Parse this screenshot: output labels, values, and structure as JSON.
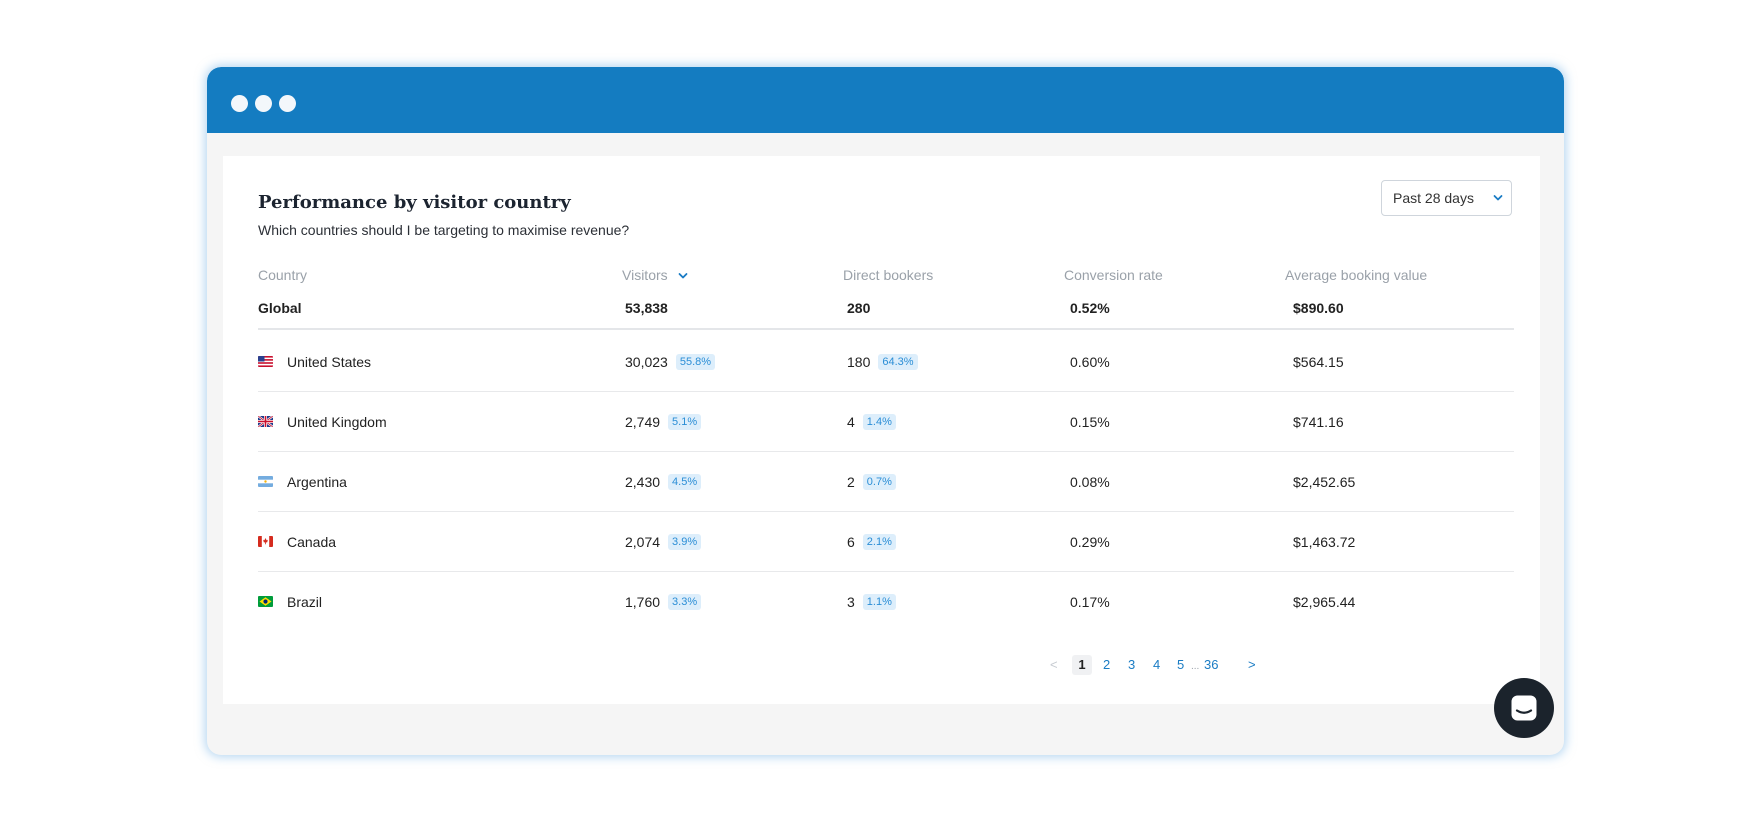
{
  "panel": {
    "title": "Performance by visitor country",
    "subtitle": "Which countries should I be targeting to maximise revenue?",
    "date_range": {
      "selected": "Past 28 days"
    }
  },
  "table": {
    "columns": {
      "country": "Country",
      "visitors": "Visitors",
      "direct_bookers": "Direct bookers",
      "conversion_rate": "Conversion rate",
      "average_booking_value": "Average booking value"
    },
    "sort": {
      "column": "Visitors",
      "direction": "descending"
    },
    "global": {
      "label": "Global",
      "visitors": "53,838",
      "direct_bookers": "280",
      "conversion_rate": "0.52%",
      "average_booking_value": "$890.60"
    },
    "rows": [
      {
        "flag": "us-flag-icon",
        "country": "United States",
        "visitors": "30,023",
        "visitors_pct": "55.8%",
        "direct_bookers": "180",
        "direct_bookers_pct": "64.3%",
        "conversion_rate": "0.60%",
        "average_booking_value": "$564.15"
      },
      {
        "flag": "uk-flag-icon",
        "country": "United Kingdom",
        "visitors": "2,749",
        "visitors_pct": "5.1%",
        "direct_bookers": "4",
        "direct_bookers_pct": "1.4%",
        "conversion_rate": "0.15%",
        "average_booking_value": "$741.16"
      },
      {
        "flag": "argentina-flag-icon",
        "country": "Argentina",
        "visitors": "2,430",
        "visitors_pct": "4.5%",
        "direct_bookers": "2",
        "direct_bookers_pct": "0.7%",
        "conversion_rate": "0.08%",
        "average_booking_value": "$2,452.65"
      },
      {
        "flag": "canada-flag-icon",
        "country": "Canada",
        "visitors": "2,074",
        "visitors_pct": "3.9%",
        "direct_bookers": "6",
        "direct_bookers_pct": "2.1%",
        "conversion_rate": "0.29%",
        "average_booking_value": "$1,463.72"
      },
      {
        "flag": "brazil-flag-icon",
        "country": "Brazil",
        "visitors": "1,760",
        "visitors_pct": "3.3%",
        "direct_bookers": "3",
        "direct_bookers_pct": "1.1%",
        "conversion_rate": "0.17%",
        "average_booking_value": "$2,965.44"
      }
    ]
  },
  "pagination": {
    "prev": "<",
    "pages": [
      "1",
      "2",
      "3",
      "4",
      "5"
    ],
    "current": "1",
    "ellipsis": "...",
    "last": "36",
    "next": ">"
  },
  "icons": {
    "window_controls": [
      "window-dot-icon",
      "window-dot-icon",
      "window-dot-icon"
    ],
    "select_chevron": "chevron-down-icon",
    "sort_indicator": "chevron-down-icon",
    "chat": "chat-bubble-icon"
  },
  "colors": {
    "titlebar": "#147cc1",
    "accent": "#1a7cc4",
    "badge_bg": "#ddeefb",
    "badge_text": "#2b8ed6",
    "chat_button": "#1b232c"
  }
}
